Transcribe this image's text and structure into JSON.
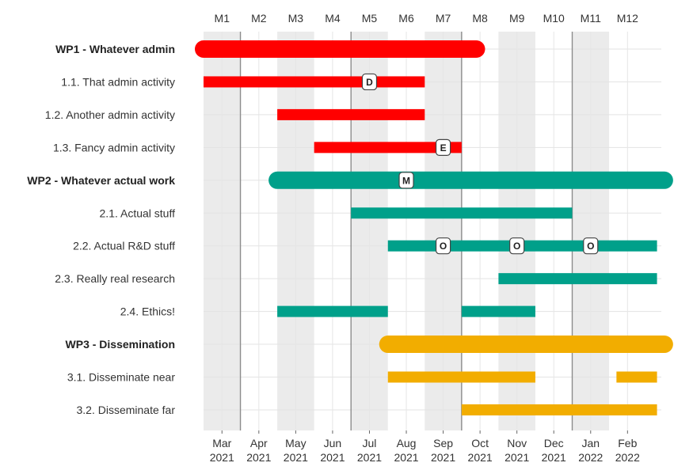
{
  "chart_data": {
    "type": "gantt",
    "title": "",
    "xlim": [
      0,
      12.5
    ],
    "month_labels": [
      "M1",
      "M2",
      "M3",
      "M4",
      "M5",
      "M6",
      "M7",
      "M8",
      "M9",
      "M10",
      "M11",
      "M12"
    ],
    "date_labels": [
      {
        "month": "Mar",
        "year": "2021"
      },
      {
        "month": "Apr",
        "year": "2021"
      },
      {
        "month": "May",
        "year": "2021"
      },
      {
        "month": "Jun",
        "year": "2021"
      },
      {
        "month": "Jul",
        "year": "2021"
      },
      {
        "month": "Aug",
        "year": "2021"
      },
      {
        "month": "Sep",
        "year": "2021"
      },
      {
        "month": "Oct",
        "year": "2021"
      },
      {
        "month": "Nov",
        "year": "2021"
      },
      {
        "month": "Dec",
        "year": "2021"
      },
      {
        "month": "Jan",
        "year": "2022"
      },
      {
        "month": "Feb",
        "year": "2022"
      }
    ],
    "colors": {
      "WP1": "#ff0000",
      "WP2": "#00a08a",
      "WP3": "#f2ad00"
    },
    "rows": [
      {
        "label": "WP1 - Whatever admin",
        "wp": "WP1",
        "is_wp": true,
        "segments": [
          [
            0,
            7.4
          ]
        ]
      },
      {
        "label": "1.1. That admin activity",
        "wp": "WP1",
        "is_wp": false,
        "segments": [
          [
            0,
            6
          ]
        ]
      },
      {
        "label": "1.2. Another admin activity",
        "wp": "WP1",
        "is_wp": false,
        "segments": [
          [
            2,
            6
          ]
        ]
      },
      {
        "label": "1.3. Fancy admin activity",
        "wp": "WP1",
        "is_wp": false,
        "segments": [
          [
            3,
            7
          ]
        ]
      },
      {
        "label": "WP2 - Whatever actual work",
        "wp": "WP2",
        "is_wp": true,
        "segments": [
          [
            2,
            12.5
          ]
        ]
      },
      {
        "label": "2.1. Actual stuff",
        "wp": "WP2",
        "is_wp": false,
        "segments": [
          [
            4,
            10
          ]
        ]
      },
      {
        "label": "2.2. Actual R&D stuff",
        "wp": "WP2",
        "is_wp": false,
        "segments": [
          [
            5,
            12.3
          ]
        ]
      },
      {
        "label": "2.3. Really real research",
        "wp": "WP2",
        "is_wp": false,
        "segments": [
          [
            8,
            12.3
          ]
        ]
      },
      {
        "label": "2.4. Ethics!",
        "wp": "WP2",
        "is_wp": false,
        "segments": [
          [
            2,
            5
          ],
          [
            7,
            9
          ]
        ]
      },
      {
        "label": "WP3 - Dissemination",
        "wp": "WP3",
        "is_wp": true,
        "segments": [
          [
            5,
            12.5
          ]
        ]
      },
      {
        "label": "3.1. Disseminate near",
        "wp": "WP3",
        "is_wp": false,
        "segments": [
          [
            5,
            9
          ],
          [
            11.2,
            12.3
          ]
        ]
      },
      {
        "label": "3.2. Disseminate far",
        "wp": "WP3",
        "is_wp": false,
        "segments": [
          [
            7,
            12.3
          ]
        ]
      }
    ],
    "milestones": [
      {
        "row": 1,
        "x": 4.5,
        "label": "D"
      },
      {
        "row": 3,
        "x": 6.5,
        "label": "E"
      },
      {
        "row": 4,
        "x": 5.5,
        "label": "M"
      },
      {
        "row": 6,
        "x": 6.5,
        "label": "O"
      },
      {
        "row": 6,
        "x": 8.5,
        "label": "O"
      },
      {
        "row": 6,
        "x": 10.5,
        "label": "O"
      }
    ],
    "period_dividers": [
      1,
      4,
      7,
      10
    ]
  }
}
